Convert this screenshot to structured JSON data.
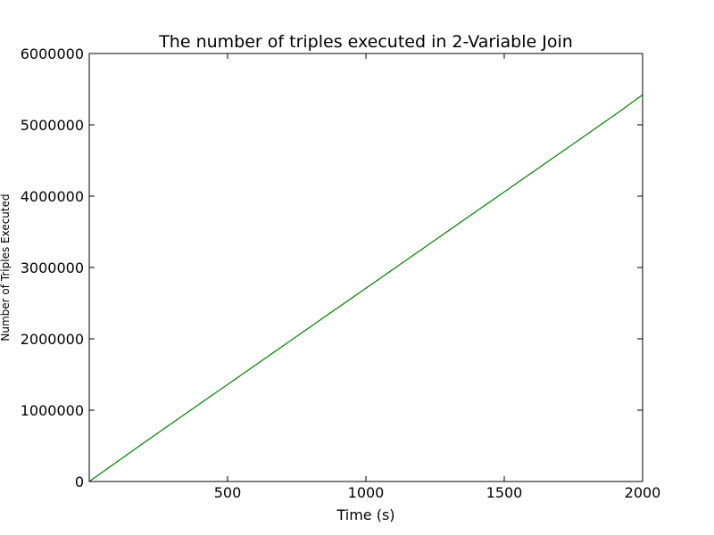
{
  "chart_data": {
    "type": "line",
    "title": "The number of triples executed in 2-Variable Join",
    "xlabel": "Time (s)",
    "ylabel": "Number of Triples Executed",
    "xlim": [
      0,
      2000
    ],
    "ylim": [
      0,
      6000000
    ],
    "grid": false,
    "x_ticks": [
      500,
      1000,
      1500,
      2000
    ],
    "x_tick_labels": [
      "500",
      "1000",
      "1500",
      "2000"
    ],
    "y_ticks": [
      0,
      1000000,
      2000000,
      3000000,
      4000000,
      5000000,
      6000000
    ],
    "y_tick_labels": [
      "0",
      "1000000",
      "2000000",
      "3000000",
      "4000000",
      "5000000",
      "6000000"
    ],
    "series": [
      {
        "color": "#008000",
        "x": [
          0,
          100,
          200,
          300,
          400,
          500,
          600,
          700,
          800,
          900,
          1000,
          1100,
          1200,
          1300,
          1400,
          1500,
          1600,
          1700,
          1800,
          1900,
          2000
        ],
        "y": [
          0,
          275000,
          550000,
          820000,
          1090000,
          1360000,
          1630000,
          1900000,
          2170000,
          2440000,
          2710000,
          2980000,
          3250000,
          3520000,
          3790000,
          4060000,
          4330000,
          4600000,
          4870000,
          5140000,
          5420000
        ]
      }
    ]
  }
}
